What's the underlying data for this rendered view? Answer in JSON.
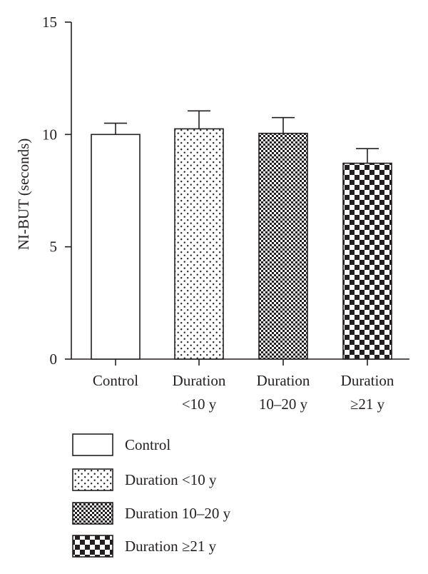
{
  "chart_data": {
    "type": "bar",
    "ylabel": "NI-BUT (seconds)",
    "ylim": [
      0,
      15
    ],
    "yticks": [
      0,
      5,
      10,
      15
    ],
    "grid": false,
    "legend_position": "bottom",
    "categories": [
      {
        "lines": [
          "Control"
        ],
        "legend": "Control",
        "value": 10.0,
        "error": 0.5,
        "pattern": "none"
      },
      {
        "lines": [
          "Duration",
          "<10 y"
        ],
        "legend": "Duration <10 y",
        "value": 10.25,
        "error": 0.8,
        "pattern": "dots"
      },
      {
        "lines": [
          "Duration",
          "10–20 y"
        ],
        "legend": "Duration 10–20 y",
        "value": 10.05,
        "error": 0.7,
        "pattern": "fine-checker"
      },
      {
        "lines": [
          "Duration",
          "≥21 y"
        ],
        "legend": "Duration ≥21 y",
        "value": 8.72,
        "error": 0.65,
        "pattern": "coarse-checker"
      }
    ],
    "colors": {
      "ink": "#231f20",
      "fill": "#ffffff"
    }
  }
}
